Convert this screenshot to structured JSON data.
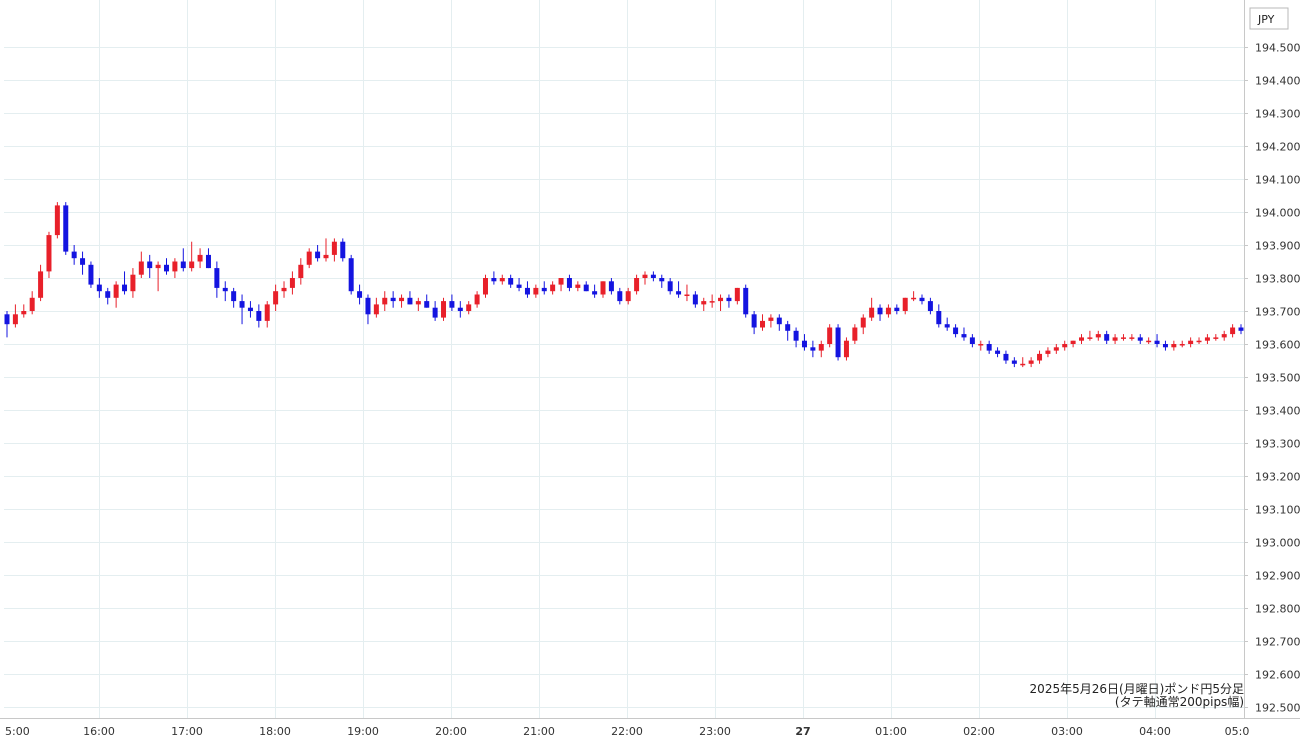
{
  "chart_data": {
    "type": "candlestick",
    "currency": "JPY",
    "caption_line1": "2025年5月26日(月曜日)ポンド円5分足",
    "caption_line2": "(タテ軸通常200pips幅)",
    "ylim": [
      192.45,
      194.55
    ],
    "y_ticks": [
      "194.500",
      "194.400",
      "194.300",
      "194.200",
      "194.100",
      "194.000",
      "193.900",
      "193.800",
      "193.700",
      "193.600",
      "193.500",
      "193.400",
      "193.300",
      "193.200",
      "193.100",
      "193.000",
      "192.900",
      "192.800",
      "192.700",
      "192.600",
      "192.500"
    ],
    "x_ticks": [
      {
        "label": "5:00",
        "bold": false
      },
      {
        "label": "16:00",
        "bold": false
      },
      {
        "label": "17:00",
        "bold": false
      },
      {
        "label": "18:00",
        "bold": false
      },
      {
        "label": "19:00",
        "bold": false
      },
      {
        "label": "20:00",
        "bold": false
      },
      {
        "label": "21:00",
        "bold": false
      },
      {
        "label": "22:00",
        "bold": false
      },
      {
        "label": "23:00",
        "bold": false
      },
      {
        "label": "27",
        "bold": true
      },
      {
        "label": "01:00",
        "bold": false
      },
      {
        "label": "02:00",
        "bold": false
      },
      {
        "label": "03:00",
        "bold": false
      },
      {
        "label": "04:00",
        "bold": false
      },
      {
        "label": "05:0",
        "bold": false
      }
    ],
    "grid": true,
    "up_color": "#e8202a",
    "down_color": "#1414e0",
    "candles": [
      [
        193.69,
        193.7,
        193.62,
        193.66
      ],
      [
        193.66,
        193.72,
        193.65,
        193.69
      ],
      [
        193.69,
        193.72,
        193.68,
        193.7
      ],
      [
        193.7,
        193.76,
        193.69,
        193.74
      ],
      [
        193.74,
        193.84,
        193.73,
        193.82
      ],
      [
        193.82,
        193.94,
        193.8,
        193.93
      ],
      [
        193.93,
        194.03,
        193.92,
        194.02
      ],
      [
        194.02,
        194.03,
        193.87,
        193.88
      ],
      [
        193.88,
        193.9,
        193.84,
        193.86
      ],
      [
        193.86,
        193.88,
        193.81,
        193.84
      ],
      [
        193.84,
        193.85,
        193.77,
        193.78
      ],
      [
        193.78,
        193.8,
        193.74,
        193.76
      ],
      [
        193.76,
        193.77,
        193.72,
        193.74
      ],
      [
        193.74,
        193.79,
        193.71,
        193.78
      ],
      [
        193.78,
        193.82,
        193.75,
        193.76
      ],
      [
        193.76,
        193.83,
        193.74,
        193.81
      ],
      [
        193.81,
        193.88,
        193.8,
        193.85
      ],
      [
        193.85,
        193.87,
        193.8,
        193.83
      ],
      [
        193.83,
        193.85,
        193.76,
        193.84
      ],
      [
        193.84,
        193.86,
        193.81,
        193.82
      ],
      [
        193.82,
        193.86,
        193.8,
        193.85
      ],
      [
        193.85,
        193.89,
        193.82,
        193.83
      ],
      [
        193.83,
        193.91,
        193.82,
        193.85
      ],
      [
        193.85,
        193.89,
        193.83,
        193.87
      ],
      [
        193.87,
        193.89,
        193.83,
        193.83
      ],
      [
        193.83,
        193.85,
        193.74,
        193.77
      ],
      [
        193.77,
        193.79,
        193.73,
        193.76
      ],
      [
        193.76,
        193.77,
        193.71,
        193.73
      ],
      [
        193.73,
        193.75,
        193.66,
        193.71
      ],
      [
        193.71,
        193.73,
        193.68,
        193.7
      ],
      [
        193.7,
        193.72,
        193.65,
        193.67
      ],
      [
        193.67,
        193.73,
        193.65,
        193.72
      ],
      [
        193.72,
        193.78,
        193.7,
        193.76
      ],
      [
        193.76,
        193.79,
        193.74,
        193.77
      ],
      [
        193.77,
        193.82,
        193.75,
        193.8
      ],
      [
        193.8,
        193.86,
        193.78,
        193.84
      ],
      [
        193.84,
        193.89,
        193.83,
        193.88
      ],
      [
        193.88,
        193.9,
        193.85,
        193.86
      ],
      [
        193.86,
        193.92,
        193.85,
        193.87
      ],
      [
        193.87,
        193.92,
        193.85,
        193.91
      ],
      [
        193.91,
        193.92,
        193.85,
        193.86
      ],
      [
        193.86,
        193.87,
        193.75,
        193.76
      ],
      [
        193.76,
        193.78,
        193.72,
        193.74
      ],
      [
        193.74,
        193.75,
        193.66,
        193.69
      ],
      [
        193.69,
        193.74,
        193.68,
        193.72
      ],
      [
        193.72,
        193.76,
        193.7,
        193.74
      ],
      [
        193.74,
        193.76,
        193.71,
        193.73
      ],
      [
        193.73,
        193.75,
        193.71,
        193.74
      ],
      [
        193.74,
        193.76,
        193.72,
        193.72
      ],
      [
        193.72,
        193.74,
        193.7,
        193.73
      ],
      [
        193.73,
        193.75,
        193.71,
        193.71
      ],
      [
        193.71,
        193.73,
        193.67,
        193.68
      ],
      [
        193.68,
        193.74,
        193.67,
        193.73
      ],
      [
        193.73,
        193.75,
        193.7,
        193.71
      ],
      [
        193.71,
        193.73,
        193.68,
        193.7
      ],
      [
        193.7,
        193.73,
        193.69,
        193.72
      ],
      [
        193.72,
        193.76,
        193.71,
        193.75
      ],
      [
        193.75,
        193.81,
        193.74,
        193.8
      ],
      [
        193.8,
        193.82,
        193.78,
        193.79
      ],
      [
        193.79,
        193.81,
        193.78,
        193.8
      ],
      [
        193.8,
        193.81,
        193.77,
        193.78
      ],
      [
        193.78,
        193.8,
        193.76,
        193.77
      ],
      [
        193.77,
        193.79,
        193.74,
        193.75
      ],
      [
        193.75,
        193.78,
        193.74,
        193.77
      ],
      [
        193.77,
        193.79,
        193.75,
        193.76
      ],
      [
        193.76,
        193.79,
        193.75,
        193.78
      ],
      [
        193.78,
        193.8,
        193.76,
        193.8
      ],
      [
        193.8,
        193.81,
        193.76,
        193.77
      ],
      [
        193.77,
        193.79,
        193.76,
        193.78
      ],
      [
        193.78,
        193.79,
        193.76,
        193.76
      ],
      [
        193.76,
        193.78,
        193.74,
        193.75
      ],
      [
        193.75,
        193.79,
        193.74,
        193.79
      ],
      [
        193.79,
        193.8,
        193.75,
        193.76
      ],
      [
        193.76,
        193.77,
        193.72,
        193.73
      ],
      [
        193.73,
        193.77,
        193.72,
        193.76
      ],
      [
        193.76,
        193.81,
        193.75,
        193.8
      ],
      [
        193.8,
        193.82,
        193.78,
        193.81
      ],
      [
        193.81,
        193.82,
        193.79,
        193.8
      ],
      [
        193.8,
        193.81,
        193.77,
        193.79
      ],
      [
        193.79,
        193.8,
        193.75,
        193.76
      ],
      [
        193.76,
        193.79,
        193.74,
        193.75
      ],
      [
        193.75,
        193.78,
        193.73,
        193.75
      ],
      [
        193.75,
        193.76,
        193.71,
        193.72
      ],
      [
        193.72,
        193.74,
        193.7,
        193.73
      ],
      [
        193.73,
        193.75,
        193.71,
        193.73
      ],
      [
        193.73,
        193.75,
        193.7,
        193.74
      ],
      [
        193.74,
        193.75,
        193.71,
        193.73
      ],
      [
        193.73,
        193.77,
        193.72,
        193.77
      ],
      [
        193.77,
        193.78,
        193.68,
        193.69
      ],
      [
        193.69,
        193.7,
        193.63,
        193.65
      ],
      [
        193.65,
        193.69,
        193.64,
        193.67
      ],
      [
        193.67,
        193.69,
        193.65,
        193.68
      ],
      [
        193.68,
        193.69,
        193.64,
        193.66
      ],
      [
        193.66,
        193.67,
        193.61,
        193.64
      ],
      [
        193.64,
        193.65,
        193.59,
        193.61
      ],
      [
        193.61,
        193.63,
        193.58,
        193.59
      ],
      [
        193.59,
        193.61,
        193.56,
        193.58
      ],
      [
        193.58,
        193.61,
        193.56,
        193.6
      ],
      [
        193.6,
        193.66,
        193.59,
        193.65
      ],
      [
        193.65,
        193.66,
        193.55,
        193.56
      ],
      [
        193.56,
        193.62,
        193.55,
        193.61
      ],
      [
        193.61,
        193.66,
        193.6,
        193.65
      ],
      [
        193.65,
        193.69,
        193.63,
        193.68
      ],
      [
        193.68,
        193.74,
        193.67,
        193.71
      ],
      [
        193.71,
        193.72,
        193.67,
        193.69
      ],
      [
        193.69,
        193.72,
        193.68,
        193.71
      ],
      [
        193.71,
        193.72,
        193.69,
        193.7
      ],
      [
        193.7,
        193.74,
        193.69,
        193.74
      ],
      [
        193.74,
        193.76,
        193.73,
        193.74
      ],
      [
        193.74,
        193.75,
        193.72,
        193.73
      ],
      [
        193.73,
        193.74,
        193.69,
        193.7
      ],
      [
        193.7,
        193.72,
        193.65,
        193.66
      ],
      [
        193.66,
        193.68,
        193.64,
        193.65
      ],
      [
        193.65,
        193.66,
        193.62,
        193.63
      ],
      [
        193.63,
        193.65,
        193.61,
        193.62
      ],
      [
        193.62,
        193.63,
        193.59,
        193.6
      ],
      [
        193.6,
        193.61,
        193.58,
        193.6
      ],
      [
        193.6,
        193.61,
        193.57,
        193.58
      ],
      [
        193.58,
        193.59,
        193.56,
        193.57
      ],
      [
        193.57,
        193.58,
        193.54,
        193.55
      ],
      [
        193.55,
        193.56,
        193.53,
        193.54
      ],
      [
        193.54,
        193.56,
        193.53,
        193.54
      ],
      [
        193.54,
        193.56,
        193.53,
        193.55
      ],
      [
        193.55,
        193.58,
        193.54,
        193.57
      ],
      [
        193.57,
        193.59,
        193.56,
        193.58
      ],
      [
        193.58,
        193.6,
        193.57,
        193.59
      ],
      [
        193.59,
        193.61,
        193.58,
        193.6
      ],
      [
        193.6,
        193.61,
        193.59,
        193.61
      ],
      [
        193.61,
        193.63,
        193.6,
        193.62
      ],
      [
        193.62,
        193.64,
        193.61,
        193.62
      ],
      [
        193.62,
        193.64,
        193.61,
        193.63
      ],
      [
        193.63,
        193.64,
        193.6,
        193.61
      ],
      [
        193.61,
        193.63,
        193.6,
        193.62
      ],
      [
        193.62,
        193.63,
        193.61,
        193.62
      ],
      [
        193.62,
        193.63,
        193.61,
        193.62
      ],
      [
        193.62,
        193.63,
        193.6,
        193.61
      ],
      [
        193.61,
        193.62,
        193.6,
        193.61
      ],
      [
        193.61,
        193.63,
        193.59,
        193.6
      ],
      [
        193.6,
        193.61,
        193.58,
        193.59
      ],
      [
        193.59,
        193.61,
        193.58,
        193.6
      ],
      [
        193.6,
        193.61,
        193.59,
        193.6
      ],
      [
        193.6,
        193.62,
        193.59,
        193.61
      ],
      [
        193.61,
        193.62,
        193.6,
        193.61
      ],
      [
        193.61,
        193.63,
        193.6,
        193.62
      ],
      [
        193.62,
        193.63,
        193.61,
        193.62
      ],
      [
        193.62,
        193.64,
        193.61,
        193.63
      ],
      [
        193.63,
        193.66,
        193.62,
        193.65
      ],
      [
        193.65,
        193.66,
        193.63,
        193.64
      ]
    ]
  }
}
